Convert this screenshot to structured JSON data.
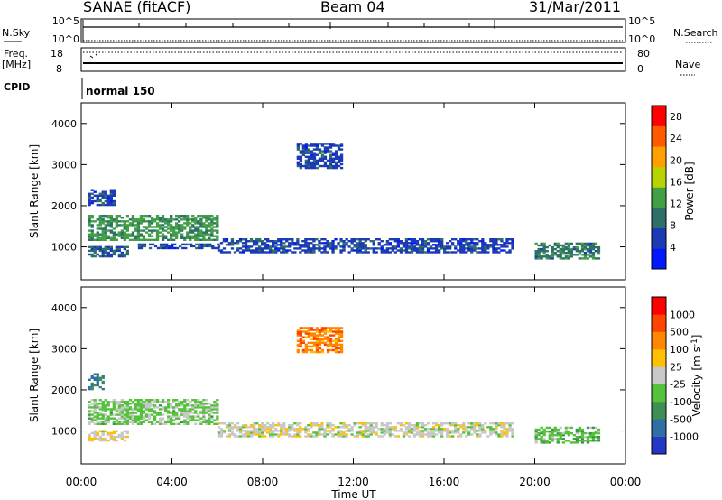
{
  "header": {
    "station": "SANAE (fitACF)",
    "beam": "Beam 04",
    "date": "31/Mar/2011"
  },
  "panels": {
    "nsky": {
      "label": "N.Sky",
      "ticks_left": [
        "10^5",
        "10^0"
      ],
      "ticks_right": [
        "10^5",
        "10^0"
      ],
      "right_label": "N.Search"
    },
    "freq": {
      "label_line1": "Freq.",
      "label_line2": "[MHz]",
      "ticks_left": [
        "18",
        "8"
      ],
      "ticks_right": [
        "80",
        "0"
      ],
      "right_label": "Nave"
    },
    "cpid": {
      "label": "CPID",
      "mode": "normal 150"
    }
  },
  "chart_data": [
    {
      "type": "heatmap",
      "panel": "power",
      "ylabel": "Slant Range [km]",
      "yticks": [
        "1000",
        "2000",
        "3000",
        "4000"
      ],
      "ylim": [
        200,
        4500
      ],
      "xlim": [
        0,
        24
      ],
      "colorbar": {
        "label": "Power [dB]",
        "ticks": [
          "4",
          "8",
          "12",
          "16",
          "20",
          "24",
          "28"
        ],
        "range": [
          0,
          30
        ],
        "colors": [
          "#0018ff",
          "#1c3ab4",
          "#2f6f6a",
          "#41a046",
          "#b8d400",
          "#ff9f00",
          "#ff5a00",
          "#ff0000"
        ]
      },
      "echo_regions": [
        {
          "t": [
            0.3,
            2.0
          ],
          "r": [
            750,
            1000
          ],
          "value": 8
        },
        {
          "t": [
            0.3,
            6.0
          ],
          "r": [
            1150,
            1750
          ],
          "value": 12
        },
        {
          "t": [
            2.5,
            6.0
          ],
          "r": [
            950,
            1050
          ],
          "value": 6
        },
        {
          "t": [
            6.0,
            19.0
          ],
          "r": [
            850,
            1200
          ],
          "value": 6
        },
        {
          "t": [
            20.0,
            22.8
          ],
          "r": [
            700,
            1100
          ],
          "value": 10
        },
        {
          "t": [
            0.3,
            1.5
          ],
          "r": [
            2000,
            2400
          ],
          "value": 6
        },
        {
          "t": [
            9.5,
            11.5
          ],
          "r": [
            2900,
            3500
          ],
          "value": 6
        }
      ]
    },
    {
      "type": "heatmap",
      "panel": "velocity",
      "ylabel": "Slant Range [km]",
      "yticks": [
        "1000",
        "2000",
        "3000",
        "4000"
      ],
      "ylim": [
        200,
        4500
      ],
      "xlim": [
        0,
        24
      ],
      "xlabel": "Time UT",
      "xticks": [
        "00:00",
        "04:00",
        "08:00",
        "12:00",
        "16:00",
        "20:00",
        "00:00"
      ],
      "colorbar": {
        "label": "Velocity [m s^-1]",
        "ticks": [
          "1000",
          "500",
          "100",
          "25",
          "-25",
          "-100",
          "-500",
          "-1000"
        ],
        "range": [
          -1250,
          1250
        ],
        "colors": [
          "#2438c8",
          "#2e6fa6",
          "#3f8f55",
          "#55c23c",
          "#c8c8c8",
          "#ffc000",
          "#ff8800",
          "#ff4400",
          "#ff0000"
        ]
      },
      "echo_regions": [
        {
          "t": [
            0.3,
            2.0
          ],
          "r": [
            750,
            1000
          ],
          "value": 80
        },
        {
          "t": [
            0.3,
            6.0
          ],
          "r": [
            1150,
            1750
          ],
          "value": -200
        },
        {
          "t": [
            6.0,
            19.0
          ],
          "r": [
            850,
            1200
          ],
          "value": 0
        },
        {
          "t": [
            20.0,
            22.8
          ],
          "r": [
            700,
            1100
          ],
          "value": -300
        },
        {
          "t": [
            0.3,
            1.0
          ],
          "r": [
            2000,
            2400
          ],
          "value": -700
        },
        {
          "t": [
            9.5,
            11.5
          ],
          "r": [
            2900,
            3500
          ],
          "value": 600
        }
      ]
    }
  ]
}
